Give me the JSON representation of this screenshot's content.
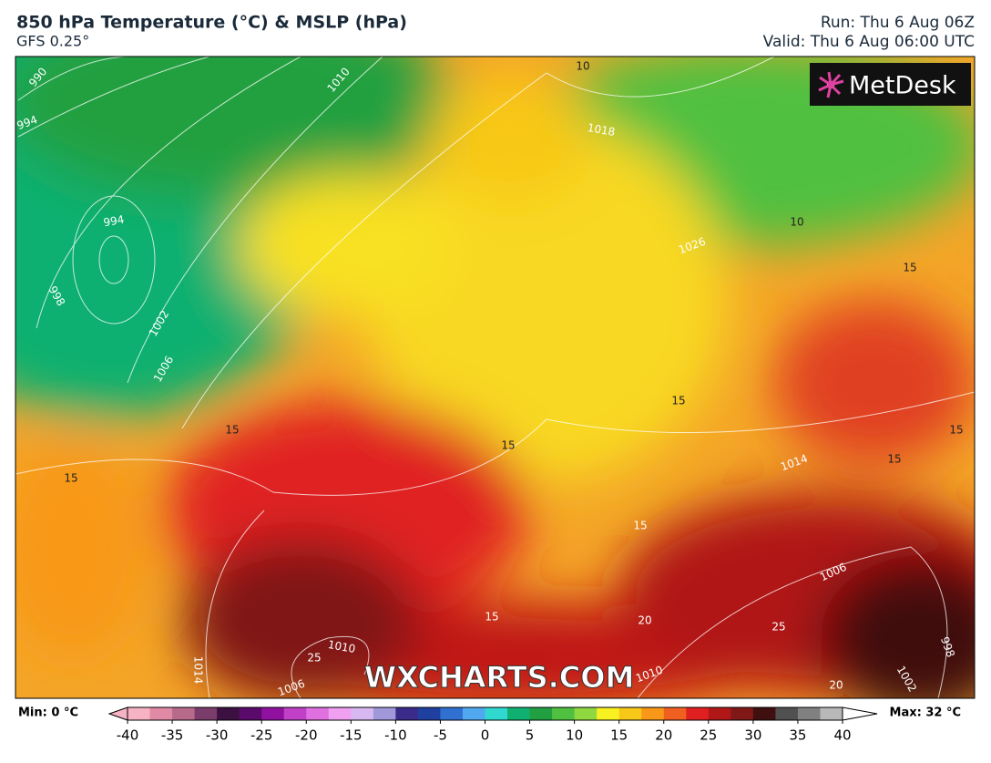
{
  "header": {
    "title": "850 hPa Temperature (°C) & MSLP (hPa)",
    "model": "GFS 0.25°",
    "run": "Run: Thu 6 Aug 06Z",
    "valid": "Valid: Thu 6 Aug 06:00 UTC"
  },
  "logo": "MetDesk",
  "watermark": "WXCHARTS.COM",
  "map": {
    "labels": [
      "990",
      "994",
      "1010",
      "10",
      "1018",
      "994",
      "998",
      "1002",
      "1006",
      "10",
      "15",
      "1026",
      "15",
      "15",
      "15",
      "15",
      "15",
      "15",
      "1014",
      "15",
      "1006",
      "15",
      "20",
      "25",
      "998",
      "1010",
      "1014",
      "1006",
      "1010",
      "1002",
      "20",
      "25"
    ]
  },
  "legend": {
    "min": "Min: 0 °C",
    "max": "Max: 32 °C",
    "ticks": [
      -40,
      -35,
      -30,
      -25,
      -20,
      -15,
      -10,
      -5,
      0,
      5,
      10,
      15,
      20,
      25,
      30,
      35,
      40
    ],
    "colors": [
      "#f7b3c4",
      "#e08aa5",
      "#b86a8a",
      "#7a3c6a",
      "#3c1040",
      "#5a0a6a",
      "#9010a0",
      "#c040c8",
      "#e070e0",
      "#f0a0f0",
      "#d8b8f0",
      "#a098d8",
      "#3a2a8a",
      "#2040a0",
      "#3070d0",
      "#50a8f0",
      "#30d8d0",
      "#10b070",
      "#20a040",
      "#50c040",
      "#90d840",
      "#f8f020",
      "#f8c818",
      "#f89818",
      "#f06020",
      "#e02020",
      "#b01818",
      "#801818",
      "#401010",
      "#505050",
      "#808080",
      "#b8b8b8"
    ]
  }
}
